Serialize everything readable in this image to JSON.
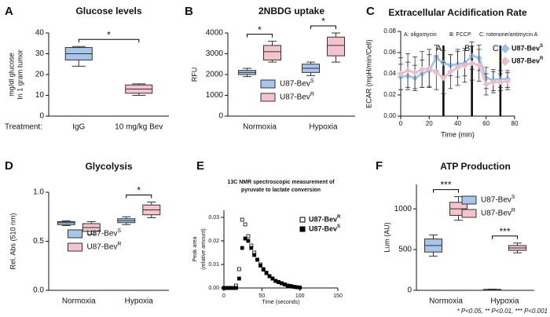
{
  "chart_data": [
    {
      "type": "box",
      "panel_label": "A",
      "title": "Glucose levels",
      "y_label": [
        "mg/dl glucose",
        "In 1 gram tumor"
      ],
      "category_label": "Treatment:",
      "categories": [
        "IgG",
        "10 mg/kg Bev"
      ],
      "boxes": [
        {
          "min": 24,
          "q1": 27,
          "median": 30,
          "q3": 33,
          "max": 33.5,
          "color": "#a8c6ec"
        },
        {
          "min": 10,
          "q1": 11,
          "median": 13,
          "q3": 15,
          "max": 15.5,
          "color": "#f4c4ce"
        }
      ],
      "ylim": [
        0,
        40
      ],
      "yticks": [
        0,
        10,
        20,
        30,
        40
      ],
      "significance": [
        {
          "text": "*"
        }
      ]
    },
    {
      "type": "box",
      "panel_label": "B",
      "title": "2NBDG uptake",
      "y_label": "RFU",
      "categories": [
        "Normoxia",
        "Hypoxia"
      ],
      "series": [
        {
          "name": "U87-Bev",
          "sup": "S",
          "color": "#a8c6ec",
          "boxes": [
            {
              "min": 1900,
              "q1": 2000,
              "median": 2100,
              "q3": 2200,
              "max": 2300
            },
            {
              "min": 1950,
              "q1": 2100,
              "median": 2300,
              "q3": 2500,
              "max": 2600
            }
          ]
        },
        {
          "name": "U87-Bev",
          "sup": "R",
          "color": "#f4c4ce",
          "boxes": [
            {
              "min": 2600,
              "q1": 2700,
              "median": 3100,
              "q3": 3400,
              "max": 3600
            },
            {
              "min": 2600,
              "q1": 2900,
              "median": 3400,
              "q3": 3800,
              "max": 4000
            }
          ]
        }
      ],
      "ylim": [
        0,
        4000
      ],
      "yticks": [
        0,
        1000,
        2000,
        3000,
        4000
      ],
      "legend": "center-right",
      "significance": [
        {
          "text": "*",
          "category": 0
        },
        {
          "text": "*",
          "category": 1
        }
      ]
    },
    {
      "type": "line",
      "panel_label": "C",
      "title": "Extracellular Acidification Rate",
      "x_label": "Time (min)",
      "y_label": "ECAR (mpH/min/Cell)",
      "x": [
        0,
        5,
        10,
        15,
        20,
        25,
        30,
        35,
        40,
        45,
        50,
        55,
        60,
        65,
        70,
        75
      ],
      "series": [
        {
          "name": "U87-Bev",
          "sup": "S",
          "color": "#9dbfea",
          "values": [
            0.037,
            0.038,
            0.036,
            0.04,
            0.043,
            0.055,
            0.05,
            0.048,
            0.049,
            0.05,
            0.057,
            0.055,
            0.036,
            0.034,
            0.035,
            0.035
          ],
          "errors": [
            0.012,
            0.013,
            0.012,
            0.013,
            0.015,
            0.012,
            0.012,
            0.01,
            0.012,
            0.012,
            0.013,
            0.012,
            0.01,
            0.01,
            0.008,
            0.008
          ]
        },
        {
          "name": "U87-Bev",
          "sup": "R",
          "color": "#e8bccb",
          "values": [
            0.04,
            0.043,
            0.041,
            0.044,
            0.045,
            0.041,
            0.036,
            0.042,
            0.046,
            0.048,
            0.05,
            0.048,
            0.03,
            0.032,
            0.032,
            0.033
          ],
          "errors": [
            0.015,
            0.016,
            0.015,
            0.017,
            0.018,
            0.016,
            0.015,
            0.016,
            0.017,
            0.016,
            0.016,
            0.015,
            0.01,
            0.01,
            0.008,
            0.008
          ]
        }
      ],
      "injections": [
        {
          "x": 30,
          "label": "A"
        },
        {
          "x": 50,
          "label": "B"
        },
        {
          "x": 70,
          "label": "C"
        }
      ],
      "injection_notes": [
        "A: oligomycin",
        "B: FCCP",
        "C: rotenone/antimycin A"
      ],
      "xlim": [
        0,
        80
      ],
      "xticks": [
        0,
        20,
        40,
        60,
        80
      ],
      "ylim": [
        0,
        0.08
      ],
      "yticks": [
        {
          "value": 0,
          "label": "0.00"
        },
        {
          "value": 0.02,
          "label": "0.02"
        },
        {
          "value": 0.04,
          "label": "0.04"
        },
        {
          "value": 0.06,
          "label": "0.06"
        },
        {
          "value": 0.08,
          "label": "0.08"
        }
      ],
      "legend": "right"
    },
    {
      "type": "box",
      "panel_label": "D",
      "title": "Glycolysis",
      "y_label": "Rel. Abs (510 nm)",
      "categories": [
        "Normoxia",
        "Hypoxia"
      ],
      "series": [
        {
          "name": "U87-Bev",
          "sup": "S",
          "color": "#a8c6ec",
          "boxes": [
            {
              "min": 0.66,
              "q1": 0.67,
              "median": 0.69,
              "q3": 0.7,
              "max": 0.71
            },
            {
              "min": 0.67,
              "q1": 0.69,
              "median": 0.71,
              "q3": 0.73,
              "max": 0.75
            }
          ]
        },
        {
          "name": "U87-Bev",
          "sup": "R",
          "color": "#f4c4ce",
          "boxes": [
            {
              "min": 0.57,
              "q1": 0.6,
              "median": 0.64,
              "q3": 0.68,
              "max": 0.7
            },
            {
              "min": 0.74,
              "q1": 0.77,
              "median": 0.82,
              "q3": 0.87,
              "max": 0.9
            }
          ]
        }
      ],
      "ylim": [
        0,
        1
      ],
      "yticks": [
        {
          "value": 0,
          "label": "0.0"
        },
        {
          "value": 0.5,
          "label": "0.5"
        },
        {
          "value": 1,
          "label": "1.0"
        }
      ],
      "legend": "bottom-center",
      "significance": [
        {
          "text": "*",
          "category": 1
        }
      ]
    },
    {
      "type": "scatter",
      "panel_label": "E",
      "title": [
        "13C NMR spectroscopic measurement of",
        "pyruvate to lactate conversion"
      ],
      "x_label": "Time (seconds)",
      "y_label": [
        "Peak area",
        "(relative amount)"
      ],
      "x": [
        0,
        4,
        8,
        12,
        16,
        20,
        24,
        28,
        32,
        36,
        40,
        44,
        48,
        52,
        56,
        60,
        64,
        68,
        72,
        76,
        80,
        84,
        88,
        92,
        96,
        100
      ],
      "series": [
        {
          "name": "U87-Bev",
          "sup": "R",
          "marker": "open",
          "color": "#000000",
          "values": [
            0,
            0,
            0,
            0,
            0.001,
            0.008,
            0.029,
            0.027,
            0.022,
            0.018,
            0.015,
            0.012,
            0.01,
            0.008,
            0.0065,
            0.005,
            0.004,
            0.003,
            0.0025,
            0.002,
            0.0015,
            0.001,
            0.0008,
            0.0005,
            0.0003,
            0.0002
          ]
        },
        {
          "name": "U87-Bev",
          "sup": "S",
          "marker": "filled",
          "color": "#000000",
          "values": [
            0,
            0,
            0,
            0,
            0,
            0.004,
            0.017,
            0.021,
            0.02,
            0.017,
            0.014,
            0.012,
            0.0095,
            0.0078,
            0.0063,
            0.005,
            0.004,
            0.003,
            0.0025,
            0.002,
            0.0015,
            0.001,
            0.0008,
            0.0005,
            0.0003,
            0.0002
          ]
        }
      ],
      "xlim": [
        0,
        150
      ],
      "xticks": [
        0,
        50,
        100,
        150
      ],
      "ylim": [
        0,
        0.033
      ],
      "yticks": [
        {
          "value": 0,
          "label": "0.00"
        },
        {
          "value": 0.01,
          "label": "0.01"
        },
        {
          "value": 0.02,
          "label": "0.02"
        },
        {
          "value": 0.03,
          "label": "0.03"
        }
      ],
      "legend": "top-right"
    },
    {
      "type": "box",
      "panel_label": "F",
      "title": "ATP Production",
      "y_label": "Lum (AU)",
      "categories": [
        "Normoxia",
        "Hypoxia"
      ],
      "series": [
        {
          "name": "U87-Bev",
          "sup": "S",
          "color": "#a8c6ec",
          "boxes": [
            {
              "min": 420,
              "q1": 470,
              "median": 550,
              "q3": 630,
              "max": 680
            },
            {
              "min": 5,
              "q1": 8,
              "median": 10,
              "q3": 12,
              "max": 15
            }
          ]
        },
        {
          "name": "U87-Bev",
          "sup": "R",
          "color": "#f4c4ce",
          "boxes": [
            {
              "min": 860,
              "q1": 920,
              "median": 1000,
              "q3": 1080,
              "max": 1150
            },
            {
              "min": 460,
              "q1": 490,
              "median": 520,
              "q3": 550,
              "max": 580
            }
          ]
        }
      ],
      "ylim": [
        0,
        1300
      ],
      "yticks": [
        0,
        500,
        1000
      ],
      "legend": "top-right",
      "significance": [
        {
          "text": "***",
          "category": 0
        },
        {
          "text": "***",
          "category": 1
        }
      ],
      "footnote": "* P<0.05, ** P<0.01, *** P<0.001"
    }
  ]
}
